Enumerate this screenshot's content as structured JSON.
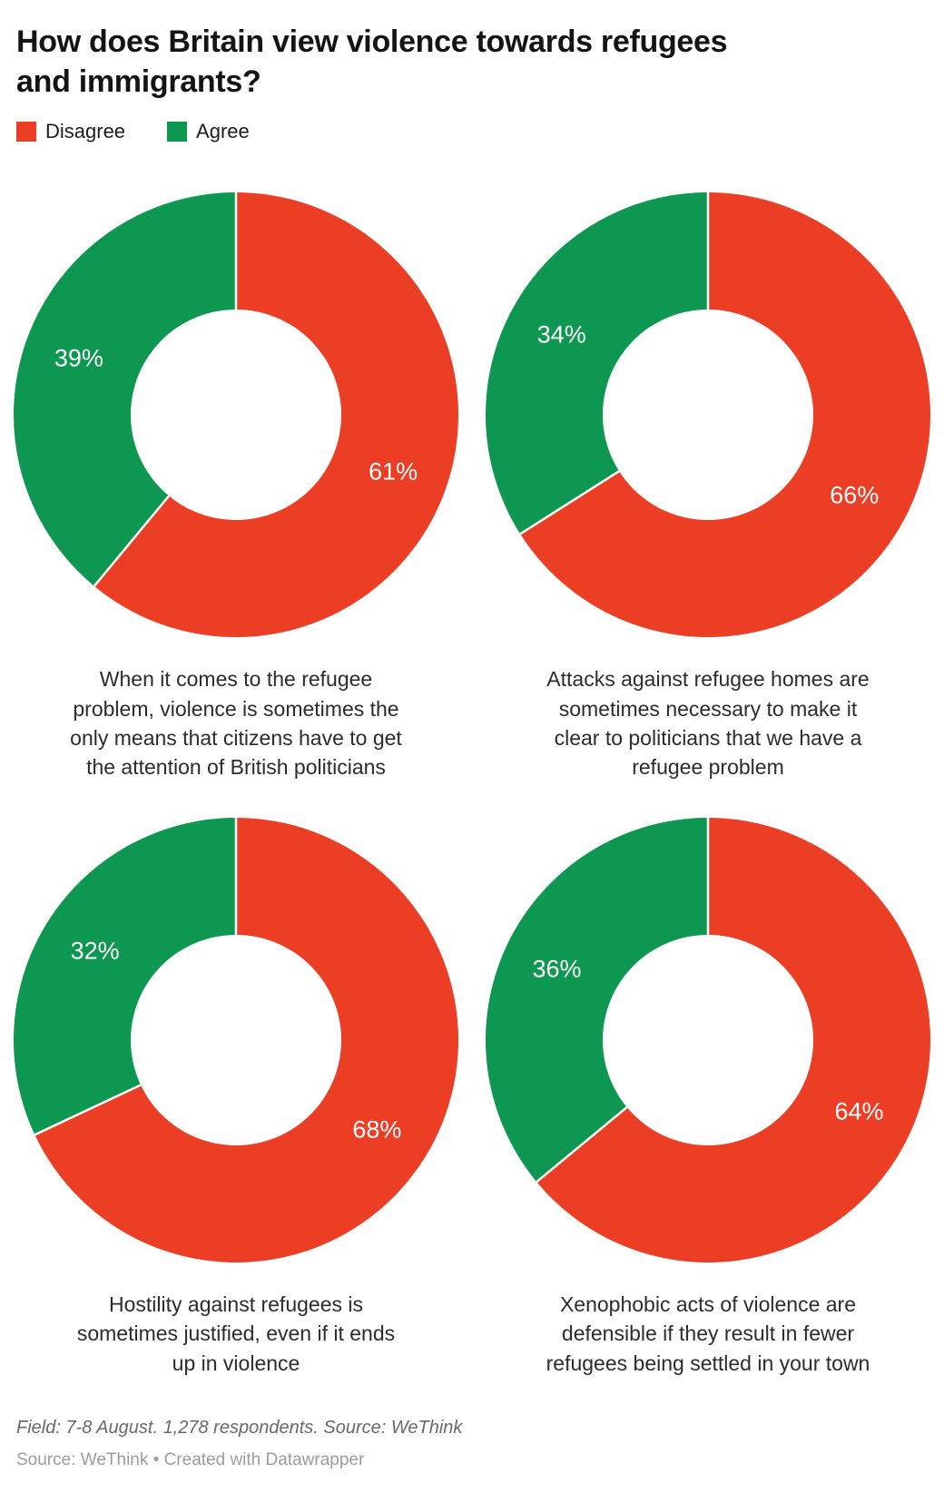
{
  "header": {
    "title": "How does Britain view violence towards refugees\nand immigrants?"
  },
  "legend": {
    "position": "top-left",
    "items": [
      {
        "label": "Disagree",
        "color": "#eb3e25"
      },
      {
        "label": "Agree",
        "color": "#0e9750"
      }
    ]
  },
  "chart_data": [
    {
      "type": "pie",
      "subtype": "donut",
      "unit": "%",
      "labels": "inside-white",
      "title": "When it comes to the refugee\nproblem, violence is sometimes the\nonly means that citizens have to get\nthe attention of British politicians",
      "series": [
        {
          "name": "Disagree",
          "value": 61,
          "color": "#eb3e25"
        },
        {
          "name": "Agree",
          "value": 39,
          "color": "#0e9750"
        }
      ]
    },
    {
      "type": "pie",
      "subtype": "donut",
      "unit": "%",
      "labels": "inside-white",
      "title": "Attacks against refugee homes are\nsometimes necessary to make it\nclear to politicians that we have a\nrefugee problem",
      "series": [
        {
          "name": "Disagree",
          "value": 66,
          "color": "#eb3e25"
        },
        {
          "name": "Agree",
          "value": 34,
          "color": "#0e9750"
        }
      ]
    },
    {
      "type": "pie",
      "subtype": "donut",
      "unit": "%",
      "labels": "inside-white",
      "title": "Hostility against refugees is\nsometimes justified, even if it ends\nup in violence",
      "series": [
        {
          "name": "Disagree",
          "value": 68,
          "color": "#eb3e25"
        },
        {
          "name": "Agree",
          "value": 32,
          "color": "#0e9750"
        }
      ]
    },
    {
      "type": "pie",
      "subtype": "donut",
      "unit": "%",
      "labels": "inside-white",
      "title": "Xenophobic acts of violence are\ndefensible if they result in fewer\nrefugees being settled in your town",
      "series": [
        {
          "name": "Disagree",
          "value": 64,
          "color": "#eb3e25"
        },
        {
          "name": "Agree",
          "value": 36,
          "color": "#0e9750"
        }
      ]
    }
  ],
  "footer": {
    "notes": "Field: 7-8 August. 1,278 respondents. Source: WeThink",
    "source": "Source: WeThink • Created with Datawrapper"
  }
}
